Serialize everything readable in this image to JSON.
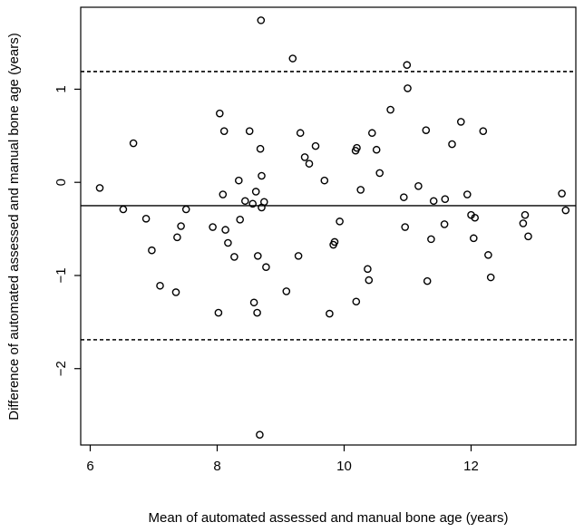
{
  "chart_data": {
    "type": "scatter",
    "title": "",
    "xlabel": "Mean of automated assessed and manual bone age (years)",
    "ylabel": "Difference of automated assessed and manual bone age (years)",
    "xlim": [
      5.85,
      13.65
    ],
    "ylim": [
      -2.82,
      1.88
    ],
    "xticks": [
      6,
      8,
      10,
      12
    ],
    "yticks": [
      -2,
      -1,
      0,
      1
    ],
    "grid": false,
    "reference_lines": [
      {
        "y": -0.25,
        "style": "solid"
      },
      {
        "y": 1.19,
        "style": "dashed"
      },
      {
        "y": -1.69,
        "style": "dashed"
      }
    ],
    "points": [
      [
        6.15,
        -0.06
      ],
      [
        6.52,
        -0.29
      ],
      [
        6.68,
        0.42
      ],
      [
        6.88,
        -0.39
      ],
      [
        6.97,
        -0.73
      ],
      [
        7.1,
        -1.11
      ],
      [
        7.35,
        -1.18
      ],
      [
        7.37,
        -0.59
      ],
      [
        7.43,
        -0.47
      ],
      [
        7.51,
        -0.29
      ],
      [
        7.93,
        -0.48
      ],
      [
        8.02,
        -1.4
      ],
      [
        8.04,
        0.74
      ],
      [
        8.09,
        -0.13
      ],
      [
        8.11,
        0.55
      ],
      [
        8.13,
        -0.51
      ],
      [
        8.17,
        -0.65
      ],
      [
        8.27,
        -0.8
      ],
      [
        8.34,
        0.02
      ],
      [
        8.36,
        -0.4
      ],
      [
        8.44,
        -0.2
      ],
      [
        8.51,
        0.55
      ],
      [
        8.56,
        -0.23
      ],
      [
        8.58,
        -1.29
      ],
      [
        8.61,
        -0.1
      ],
      [
        8.63,
        -1.4
      ],
      [
        8.64,
        -0.79
      ],
      [
        8.68,
        0.36
      ],
      [
        8.7,
        -0.27
      ],
      [
        8.7,
        0.07
      ],
      [
        8.74,
        -0.21
      ],
      [
        8.77,
        -0.91
      ],
      [
        8.69,
        1.74
      ],
      [
        8.67,
        -2.71
      ],
      [
        9.09,
        -1.17
      ],
      [
        9.19,
        1.33
      ],
      [
        9.28,
        -0.79
      ],
      [
        9.31,
        0.53
      ],
      [
        9.38,
        0.27
      ],
      [
        9.45,
        0.2
      ],
      [
        9.55,
        0.39
      ],
      [
        9.69,
        0.02
      ],
      [
        9.77,
        -1.41
      ],
      [
        9.83,
        -0.67
      ],
      [
        9.85,
        -0.64
      ],
      [
        9.93,
        -0.42
      ],
      [
        10.18,
        0.34
      ],
      [
        10.2,
        0.37
      ],
      [
        10.19,
        -1.28
      ],
      [
        10.26,
        -0.08
      ],
      [
        10.37,
        -0.93
      ],
      [
        10.39,
        -1.05
      ],
      [
        10.44,
        0.53
      ],
      [
        10.51,
        0.35
      ],
      [
        10.56,
        0.1
      ],
      [
        10.73,
        0.78
      ],
      [
        10.94,
        -0.16
      ],
      [
        10.96,
        -0.48
      ],
      [
        10.99,
        1.26
      ],
      [
        11.0,
        1.01
      ],
      [
        11.17,
        -0.04
      ],
      [
        11.29,
        0.56
      ],
      [
        11.31,
        -1.06
      ],
      [
        11.37,
        -0.61
      ],
      [
        11.41,
        -0.2
      ],
      [
        11.58,
        -0.45
      ],
      [
        11.59,
        -0.18
      ],
      [
        11.7,
        0.41
      ],
      [
        11.84,
        0.65
      ],
      [
        11.94,
        -0.13
      ],
      [
        12.0,
        -0.35
      ],
      [
        12.04,
        -0.6
      ],
      [
        12.06,
        -0.38
      ],
      [
        12.19,
        0.55
      ],
      [
        12.27,
        -0.78
      ],
      [
        12.31,
        -1.02
      ],
      [
        12.82,
        -0.44
      ],
      [
        12.85,
        -0.35
      ],
      [
        12.9,
        -0.58
      ],
      [
        13.43,
        -0.12
      ],
      [
        13.49,
        -0.3
      ]
    ]
  }
}
